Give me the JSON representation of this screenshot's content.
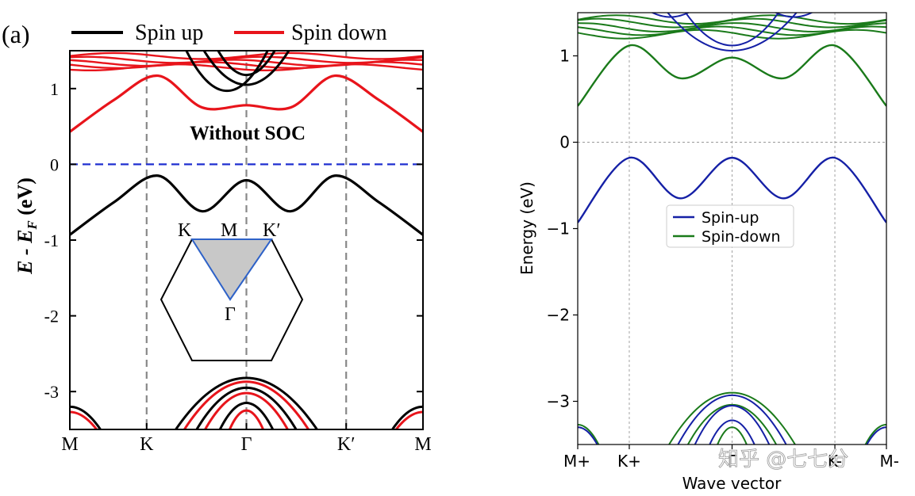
{
  "chart_data": [
    {
      "type": "line",
      "panel_label": "(a)",
      "title": "Without SOC",
      "xlabel": "",
      "ylabel": "E - E_F (eV)",
      "ylabel_parts": {
        "main": "E - E",
        "subscript": "F",
        "unit": " (eV)"
      },
      "x_ticks": [
        "M",
        "K",
        "Γ",
        "K′",
        "M"
      ],
      "y_ticks": [
        "1",
        "0",
        "-1",
        "-2",
        "-3"
      ],
      "ylim": [
        -3.5,
        1.5
      ],
      "fermi_level": 0,
      "legend": {
        "placement": "top",
        "entries": [
          "Spin up",
          "Spin down"
        ]
      },
      "colors": {
        "up": "#000000",
        "down": "#e8141b",
        "fermi": "#1f2fd0",
        "grid": "#888888"
      },
      "series": [
        {
          "name": "Spin up",
          "role": "valence",
          "x": [
            0,
            0.125,
            0.25,
            0.375,
            0.5,
            0.625,
            0.75,
            0.875,
            1
          ],
          "values": [
            -0.93,
            -0.5,
            -0.15,
            -0.62,
            -0.21,
            -0.62,
            -0.15,
            -0.5,
            -0.93
          ]
        },
        {
          "name": "Spin down",
          "role": "conduction",
          "x": [
            0,
            0.125,
            0.25,
            0.375,
            0.5,
            0.625,
            0.75,
            0.875,
            1
          ],
          "values": [
            0.43,
            0.85,
            1.17,
            0.75,
            0.78,
            0.75,
            1.17,
            0.85,
            0.43
          ]
        }
      ],
      "inset": {
        "labels": [
          "K",
          "M",
          "K′",
          "Γ"
        ]
      }
    },
    {
      "type": "line",
      "xlabel": "Wave vector",
      "ylabel": "Energy (eV)",
      "x_ticks": [
        "M+",
        "K+",
        "Γ",
        "K-",
        "M-"
      ],
      "y_ticks": [
        "1",
        "0",
        "−1",
        "−2",
        "−3"
      ],
      "ylim": [
        -3.5,
        1.5
      ],
      "grid": true,
      "legend": {
        "placement": "center-right",
        "entries": [
          "Spin-up",
          "Spin-down"
        ]
      },
      "colors": {
        "up": "#1520a6",
        "down": "#1a7a1a"
      },
      "series": [
        {
          "name": "Spin-up",
          "role": "valence",
          "x": [
            0,
            0.167,
            0.333,
            0.5,
            0.667,
            0.833,
            1
          ],
          "values": [
            -0.93,
            -0.18,
            -0.65,
            -0.18,
            -0.65,
            -0.18,
            -0.93
          ]
        },
        {
          "name": "Spin-down",
          "role": "conduction",
          "x": [
            0,
            0.167,
            0.333,
            0.5,
            0.667,
            0.833,
            1
          ],
          "values": [
            0.42,
            1.12,
            0.74,
            0.98,
            0.74,
            1.12,
            0.42
          ]
        }
      ],
      "watermark": "知乎 @七七分"
    }
  ]
}
